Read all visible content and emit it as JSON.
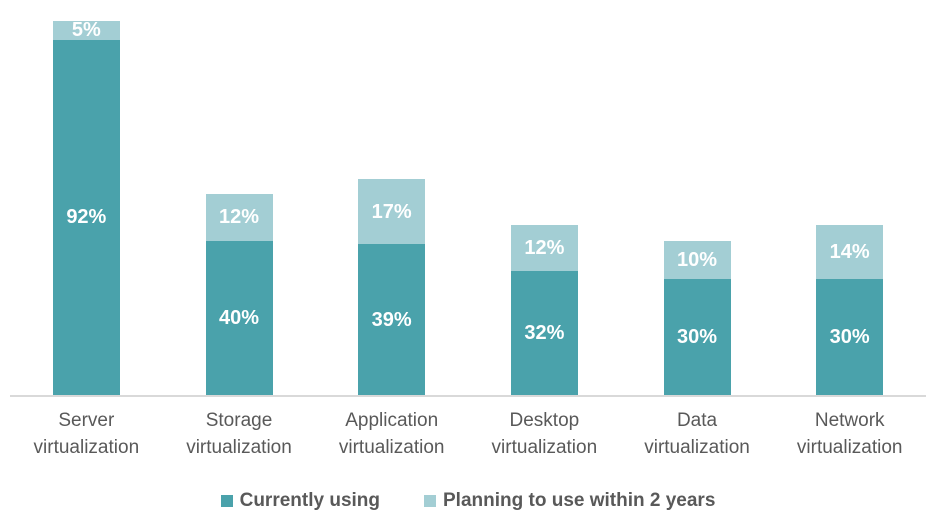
{
  "chart_data": {
    "type": "bar",
    "stacked": true,
    "title": "",
    "xlabel": "",
    "ylabel": "",
    "ylim": [
      0,
      100
    ],
    "grid": false,
    "legend_position": "bottom",
    "categories": [
      "Server virtualization",
      "Storage virtualization",
      "Application virtualization",
      "Desktop virtualization",
      "Data virtualization",
      "Network virtualization"
    ],
    "series": [
      {
        "name": "Currently using",
        "values": [
          92,
          40,
          39,
          32,
          30,
          30
        ],
        "color": "#4aa2ab"
      },
      {
        "name": "Planning to use within 2 years",
        "values": [
          5,
          12,
          17,
          12,
          10,
          14
        ],
        "color": "#a3ced4"
      }
    ],
    "value_label_suffix": "%",
    "value_label_color": "#ffffff",
    "category_text_color": "#595959",
    "legend_text_color": "#595959",
    "axis_line_color": "#d9d9d9"
  }
}
